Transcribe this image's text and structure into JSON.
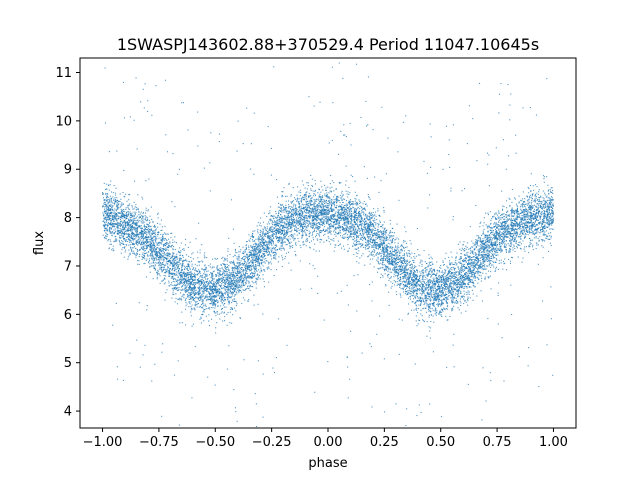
{
  "chart_data": {
    "type": "scatter",
    "title": "1SWASPJ143602.88+370529.4 Period 11047.10645s",
    "xlabel": "phase",
    "ylabel": "flux",
    "xlim": [
      -1.1,
      1.1
    ],
    "ylim": [
      3.65,
      11.3
    ],
    "x_ticks": [
      -1.0,
      -0.75,
      -0.5,
      -0.25,
      0.0,
      0.25,
      0.5,
      0.75,
      1.0
    ],
    "x_tick_labels": [
      "−1.00",
      "−0.75",
      "−0.50",
      "−0.25",
      "0.00",
      "0.25",
      "0.50",
      "0.75",
      "1.00"
    ],
    "y_ticks": [
      4,
      5,
      6,
      7,
      8,
      9,
      10,
      11
    ],
    "y_tick_labels": [
      "4",
      "5",
      "6",
      "7",
      "8",
      "9",
      "10",
      "11"
    ],
    "grid": false,
    "point_color": "#1f77b4",
    "series": [
      {
        "x": [
          -1.0,
          -0.9,
          -0.8,
          -0.7,
          -0.6,
          -0.5,
          -0.4,
          -0.3,
          -0.2,
          -0.1,
          0.0,
          0.1,
          0.2,
          0.3,
          0.4,
          0.5,
          0.6,
          0.7,
          0.8,
          0.9,
          1.0
        ],
        "y": [
          8.1,
          7.85,
          7.55,
          7.05,
          6.6,
          6.5,
          6.75,
          7.3,
          7.85,
          8.05,
          8.1,
          7.95,
          7.65,
          7.1,
          6.55,
          6.5,
          6.75,
          7.35,
          7.8,
          8.0,
          8.1
        ]
      }
    ]
  }
}
